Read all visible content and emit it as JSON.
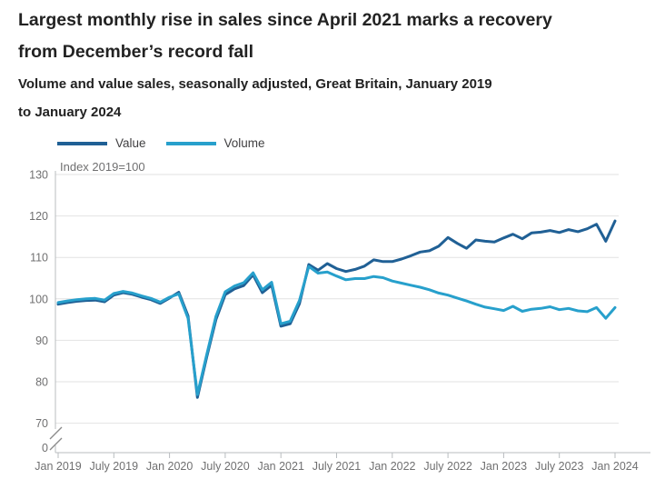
{
  "header": {
    "title_lines": [
      "Largest monthly rise in sales since April 2021 marks a recovery",
      "from December’s record fall"
    ],
    "subtitle_lines": [
      "Volume and value sales, seasonally adjusted, Great Britain, January 2019",
      "to January 2024"
    ]
  },
  "chart_data": {
    "type": "line",
    "title": "Largest monthly rise in sales since April 2021 marks a recovery from December’s record fall",
    "subtitle": "Volume and value sales, seasonally adjusted, Great Britain, January 2019 to January 2024",
    "y_axis_label": "Index 2019=100",
    "x_frequency": "monthly",
    "x_start": "Jan 2019",
    "x_end": "Jan 2024",
    "x_tick_labels": [
      "Jan 2019",
      "July 2019",
      "Jan 2020",
      "July 2020",
      "Jan 2021",
      "July 2021",
      "Jan 2022",
      "July 2022",
      "Jan 2023",
      "July 2023",
      "Jan 2024"
    ],
    "x_tick_month_indices": [
      0,
      6,
      12,
      18,
      24,
      30,
      36,
      42,
      48,
      54,
      60
    ],
    "y_ticks": [
      130,
      120,
      110,
      100,
      90,
      80,
      70
    ],
    "y_base_tick": "0",
    "y_axis_break": true,
    "ylim": [
      70,
      130
    ],
    "grid": "horizontal",
    "legend_position": "top-left",
    "series": [
      {
        "name": "Value",
        "color": "#206095",
        "values": [
          98.7,
          99.1,
          99.4,
          99.6,
          99.7,
          99.3,
          100.9,
          101.5,
          101.1,
          100.4,
          99.8,
          98.9,
          100.2,
          101.6,
          95.9,
          76.2,
          85.9,
          95.0,
          101.0,
          102.4,
          103.2,
          105.8,
          101.5,
          103.3,
          93.4,
          94.0,
          98.8,
          108.3,
          106.9,
          108.5,
          107.3,
          106.6,
          107.1,
          107.9,
          109.4,
          109.0,
          109.0,
          109.6,
          110.4,
          111.3,
          111.6,
          112.7,
          114.8,
          113.4,
          112.2,
          114.2,
          113.9,
          113.7,
          114.7,
          115.6,
          114.5,
          115.9,
          116.1,
          116.5,
          116.0,
          116.7,
          116.2,
          116.9,
          118.0,
          113.9,
          118.8
        ]
      },
      {
        "name": "Volume",
        "color": "#27A0CC",
        "values": [
          99.1,
          99.5,
          99.8,
          100.0,
          100.1,
          99.7,
          101.3,
          101.8,
          101.4,
          100.7,
          100.1,
          99.2,
          100.4,
          101.2,
          95.3,
          76.9,
          86.5,
          95.8,
          101.7,
          103.1,
          103.9,
          106.3,
          102.2,
          104.0,
          94.0,
          94.6,
          99.6,
          107.8,
          106.2,
          106.5,
          105.5,
          104.6,
          104.9,
          104.9,
          105.4,
          105.1,
          104.3,
          103.8,
          103.3,
          102.8,
          102.2,
          101.4,
          100.9,
          100.2,
          99.5,
          98.7,
          98.0,
          97.6,
          97.2,
          98.2,
          97.0,
          97.5,
          97.7,
          98.1,
          97.4,
          97.7,
          97.1,
          96.9,
          97.9,
          95.3,
          97.9
        ]
      }
    ]
  },
  "colors": {
    "title_text": "#222222",
    "axis_text": "#707071",
    "legend_text": "#414042",
    "gridline": "#e2e2e2",
    "axis_line": "#b8bcbf",
    "axis_break_mark": "#8a8a8a"
  }
}
